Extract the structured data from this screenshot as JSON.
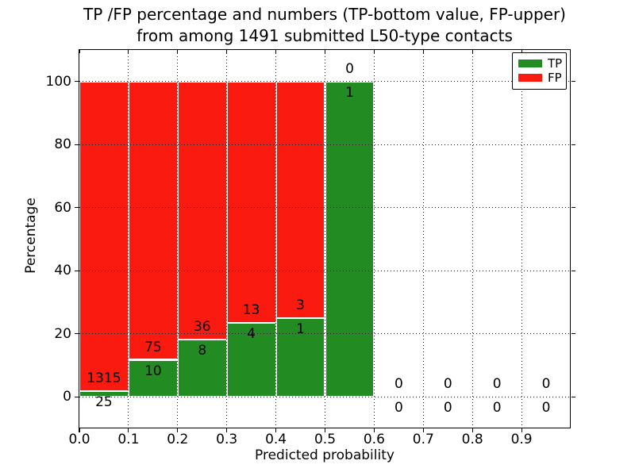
{
  "figure": {
    "title_line1": "TP /FP percentage and numbers (TP-bottom value, FP-upper)",
    "title_line2": "from among 1491 submitted L50-type contacts"
  },
  "chart_data": {
    "type": "bar",
    "stacked": true,
    "title": "TP /FP percentage and numbers (TP-bottom value, FP-upper)\nfrom among 1491 submitted L50-type contacts",
    "xlabel": "Predicted probability",
    "ylabel": "Percentage",
    "xlim": [
      0.0,
      1.0
    ],
    "ylim": [
      -10,
      110
    ],
    "xticks": [
      "0.0",
      "0.1",
      "0.2",
      "0.3",
      "0.4",
      "0.5",
      "0.6",
      "0.7",
      "0.8",
      "0.9"
    ],
    "yticks": [
      0,
      20,
      40,
      60,
      80,
      100
    ],
    "grid": true,
    "grid_style": "dotted",
    "bin_width": 0.1,
    "bin_starts": [
      0.0,
      0.1,
      0.2,
      0.3,
      0.4,
      0.5,
      0.6,
      0.7,
      0.8,
      0.9
    ],
    "series": [
      {
        "name": "TP",
        "color": "#228b22",
        "counts": [
          25,
          10,
          8,
          4,
          1,
          1,
          0,
          0,
          0,
          0
        ]
      },
      {
        "name": "FP",
        "color": "#fa1a10",
        "counts": [
          1315,
          75,
          36,
          13,
          3,
          0,
          0,
          0,
          0,
          0
        ]
      }
    ],
    "legend": {
      "position": "upper right",
      "entries": [
        "TP",
        "FP"
      ]
    },
    "total_submitted": 1491
  },
  "colors": {
    "tp_green": "#228b22",
    "fp_red": "#fa1a10",
    "grid": "#1a1a1a",
    "axis": "#000000",
    "background": "#ffffff"
  }
}
